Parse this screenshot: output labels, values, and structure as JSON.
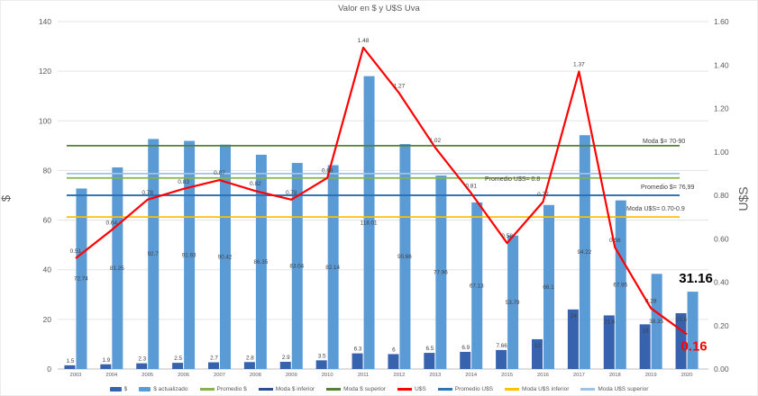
{
  "title": "Valor en $ y U$S Uva",
  "left_axis": {
    "label": "$",
    "ticks": [
      "0",
      "20",
      "40",
      "60",
      "80",
      "100",
      "120",
      "140"
    ],
    "max": 140
  },
  "right_axis": {
    "label": "U$S",
    "ticks": [
      "0.00",
      "0.20",
      "0.40",
      "0.60",
      "0.80",
      "1.00",
      "1.20",
      "1.40",
      "1.60"
    ],
    "max": 1.6
  },
  "annotations": [
    {
      "text": "Moda $= 70-90"
    },
    {
      "text": "Promedio U$S= 0.8"
    },
    {
      "text": "Promedio $= 76,99"
    },
    {
      "text": "Moda U$S= 0.70-0.9"
    }
  ],
  "colors": {
    "bar_dark": "#3763AE",
    "bar_light": "#5B9BD5",
    "uss_line": "#FF0000",
    "promedio_pesos": "#86B349",
    "moda_pesos_inferior": "#2A4E8F",
    "moda_pesos_superior": "#548235",
    "promedio_uss": "#2E75B6",
    "moda_uss_inferior": "#FFC000",
    "moda_uss_superior": "#9DC3E6",
    "gridline": "#E3E3E3",
    "axis_line": "#BFBFBF",
    "data_label": "#404040",
    "tick_label": "#595959",
    "highlight_black": "#000000",
    "highlight_red": "#FF0000"
  },
  "chart_data": {
    "type": "bar",
    "subtype": "combo bar+line, dual axis",
    "title": "Valor en $ y U$S Uva",
    "categories": [
      "2003",
      "2004",
      "2005",
      "2006",
      "2007",
      "2008",
      "2009",
      "2010",
      "2011",
      "2012",
      "2013",
      "2014",
      "2015",
      "2016",
      "2017",
      "2018",
      "2019",
      "2020"
    ],
    "ylim_left": [
      0,
      140
    ],
    "ylim_right": [
      0,
      1.6
    ],
    "grid": true,
    "legend_position": "bottom",
    "series": [
      {
        "name": "$",
        "type": "bar",
        "axis": "left",
        "color": "#3763AE",
        "values": [
          1.5,
          1.9,
          2.3,
          2.5,
          2.7,
          2.8,
          2.9,
          3.5,
          6.3,
          6,
          6.5,
          6.9,
          7.66,
          12,
          24,
          21.6,
          18,
          22.5
        ]
      },
      {
        "name": "$ actualizado",
        "type": "bar",
        "axis": "left",
        "color": "#5B9BD5",
        "values": [
          72.74,
          81.25,
          92.7,
          91.93,
          90.42,
          86.35,
          83.04,
          82.14,
          118.01,
          90.66,
          77.96,
          67.13,
          53.79,
          66.1,
          94.22,
          67.95,
          38.35,
          31.16
        ]
      },
      {
        "name": "U$S",
        "type": "line",
        "axis": "right",
        "color": "#FF0000",
        "values": [
          0.51,
          0.64,
          0.78,
          0.83,
          0.87,
          0.82,
          0.78,
          0.88,
          1.48,
          1.27,
          1.02,
          0.81,
          0.58,
          0.77,
          1.37,
          0.56,
          0.28,
          0.16
        ]
      }
    ],
    "reference_lines": [
      {
        "name": "Promedio $",
        "axis": "left",
        "value": 76.99,
        "color": "#86B349"
      },
      {
        "name": "Moda $ inferior",
        "axis": "left",
        "value": 70,
        "color": "#2A4E8F"
      },
      {
        "name": "Moda $ superior",
        "axis": "left",
        "value": 90,
        "color": "#548235"
      },
      {
        "name": "Promedio U$S",
        "axis": "right",
        "value": 0.8,
        "color": "#2E75B6"
      },
      {
        "name": "Moda U$S inferior",
        "axis": "right",
        "value": 0.7,
        "color": "#FFC000"
      },
      {
        "name": "Moda U$S superior",
        "axis": "right",
        "value": 0.9,
        "color": "#9DC3E6"
      }
    ],
    "highlighted_labels": [
      {
        "series": "$ actualizado",
        "category": "2020",
        "text": "31.16",
        "style": "bold black large"
      },
      {
        "series": "U$S",
        "category": "2020",
        "text": "0.16",
        "style": "bold red large"
      }
    ]
  },
  "legend": {
    "items": [
      {
        "label": "$",
        "marker": "bar",
        "color": "#3763AE"
      },
      {
        "label": "$ actualizado",
        "marker": "bar",
        "color": "#5B9BD5"
      },
      {
        "label": "Promedio $",
        "marker": "line",
        "color": "#86B349"
      },
      {
        "label": "Moda $ inferior",
        "marker": "line",
        "color": "#2A4E8F"
      },
      {
        "label": "Moda $ superior",
        "marker": "line",
        "color": "#548235"
      },
      {
        "label": "U$S",
        "marker": "line",
        "color": "#FF0000"
      },
      {
        "label": "Promedio U$S",
        "marker": "line",
        "color": "#2E75B6"
      },
      {
        "label": "Moda U$S inferior",
        "marker": "line",
        "color": "#FFC000"
      },
      {
        "label": "Moda U$S superior",
        "marker": "line",
        "color": "#9DC3E6"
      }
    ]
  }
}
